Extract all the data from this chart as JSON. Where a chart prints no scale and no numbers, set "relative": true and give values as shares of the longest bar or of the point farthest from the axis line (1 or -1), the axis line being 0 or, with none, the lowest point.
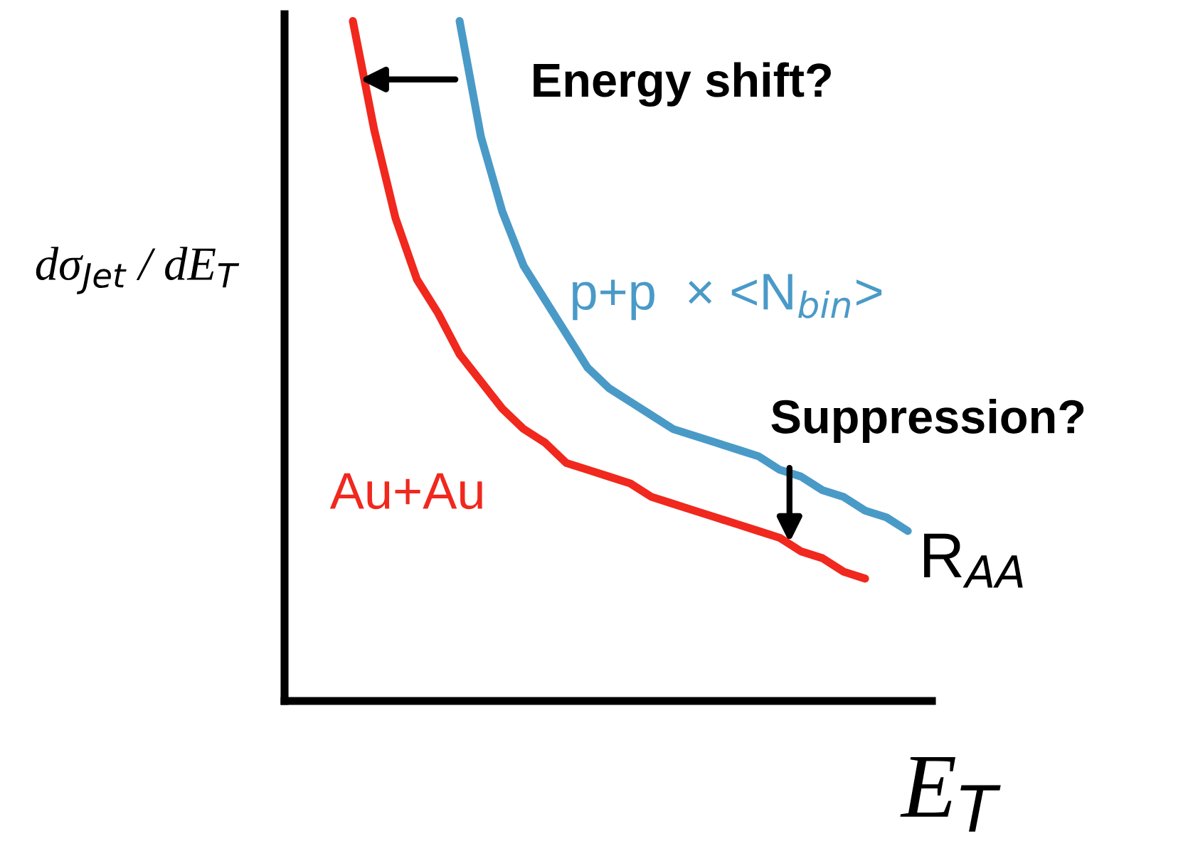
{
  "chart_data": {
    "type": "line",
    "relative": true,
    "xlabel": "E$_{T}$",
    "ylabel": "dσ$_{Jet}$ / dE$_{T}$",
    "legend": false,
    "marker": "none",
    "categories": [
      null,
      null,
      null,
      null,
      null,
      null,
      null,
      null,
      null,
      null,
      null,
      null,
      null,
      null,
      null,
      null,
      null,
      null,
      null,
      null,
      null,
      null,
      null,
      null,
      null,
      null,
      null
    ],
    "series": [
      {
        "name": "Au+Au",
        "color": "#f0281e",
        "values": [
          1.0,
          0.84,
          0.71,
          0.62,
          0.57,
          0.51,
          0.47,
          0.43,
          0.4,
          0.38,
          0.35,
          0.34,
          0.33,
          0.32,
          0.3,
          0.29,
          0.28,
          0.27,
          0.26,
          0.25,
          0.24,
          0.22,
          0.21,
          0.19,
          0.18,
          null,
          null
        ]
      },
      {
        "name": "p+p  × <N$_{bin}$>",
        "color": "#4a9ac8",
        "values": [
          null,
          null,
          null,
          null,
          null,
          1.0,
          0.83,
          0.72,
          0.64,
          0.59,
          0.54,
          0.49,
          0.46,
          0.44,
          0.42,
          0.4,
          0.39,
          0.38,
          0.37,
          0.36,
          0.34,
          0.33,
          0.31,
          0.3,
          0.28,
          0.27,
          0.25
        ]
      }
    ],
    "annotations": [
      "Energy shift?",
      "Suppression?",
      "R$_{AA}$"
    ]
  }
}
